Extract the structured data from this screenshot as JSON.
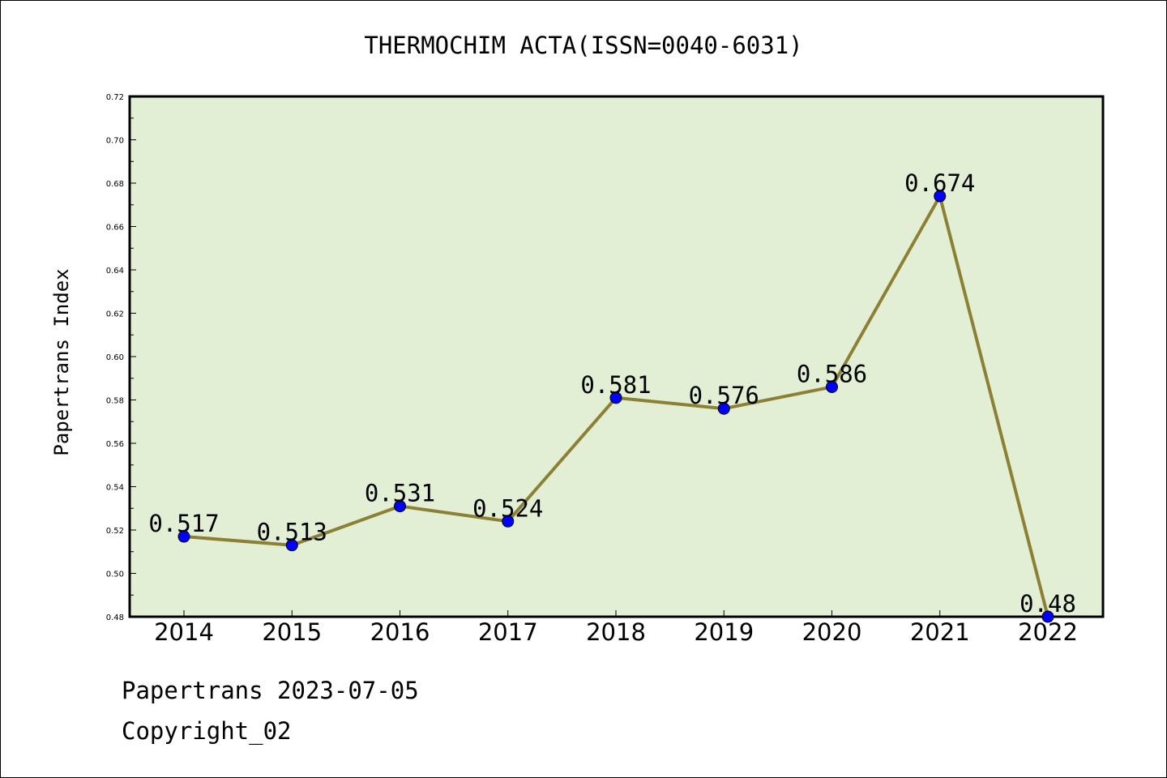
{
  "chart_data": {
    "type": "line",
    "title": "THERMOCHIM ACTA(ISSN=0040-6031)",
    "xlabel": "",
    "ylabel": "Papertrans Index",
    "categories": [
      "2014",
      "2015",
      "2016",
      "2017",
      "2018",
      "2019",
      "2020",
      "2021",
      "2022"
    ],
    "series": [
      {
        "values": [
          0.517,
          0.513,
          0.531,
          0.524,
          0.581,
          0.576,
          0.586,
          0.674,
          0.48
        ],
        "labels": [
          "0.517",
          "0.513",
          "0.531",
          "0.524",
          "0.581",
          "0.576",
          "0.586",
          "0.674",
          "0.48"
        ],
        "line_color": "#8b8033",
        "marker_color": "#0000ff"
      }
    ],
    "ylim": [
      0.48,
      0.72
    ],
    "y_ticks": [
      "0.48",
      "0.50",
      "0.52",
      "0.54",
      "0.56",
      "0.58",
      "0.60",
      "0.62",
      "0.64",
      "0.66",
      "0.68",
      "0.70",
      "0.72"
    ],
    "grid": false,
    "plot_background": "#e2efd5"
  },
  "footer": {
    "line1": "Papertrans 2023-07-05",
    "line2": "Copyright_02"
  }
}
